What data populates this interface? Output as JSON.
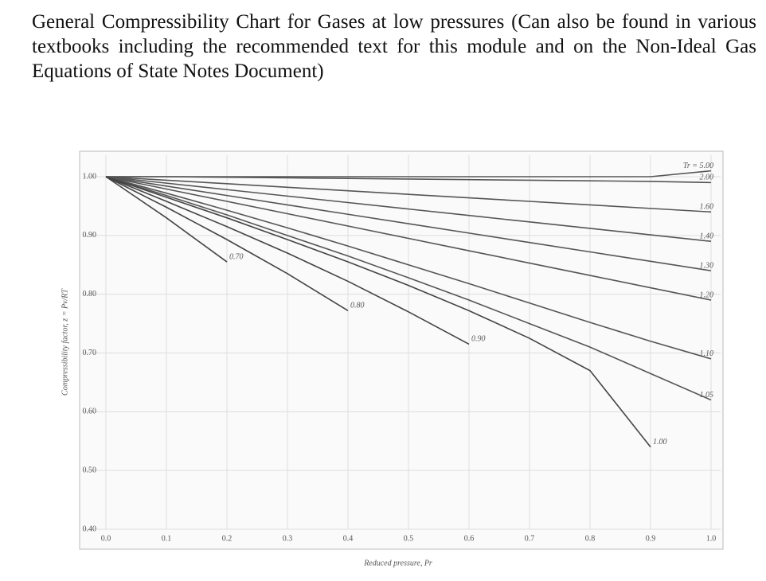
{
  "paragraph": "General Compressibility Chart for Gases at low pressures (Can also be found in various textbooks including the recommended text for this module and on the Non-Ideal Gas Equations of State Notes Document)",
  "chart_data": {
    "type": "line",
    "xlabel": "Reduced pressure, Pr",
    "ylabel": "Compressibility factor, z = Pv/RT",
    "x": [
      0,
      0.1,
      0.2,
      0.3,
      0.4,
      0.5,
      0.6,
      0.7,
      0.8,
      0.9,
      1.0
    ],
    "xlim": [
      0,
      1.0
    ],
    "xticks": [
      {
        "value": 0,
        "label": "0.0"
      },
      0.1,
      0.2,
      0.3,
      0.4,
      0.5,
      0.6,
      0.7,
      0.8,
      0.9,
      {
        "value": 1.0,
        "label": "1.0"
      }
    ],
    "ylim": [
      0.4,
      1.0
    ],
    "yticks": [
      {
        "value": 0.4,
        "label": "0.40"
      },
      {
        "value": 0.5,
        "label": "0.50"
      },
      {
        "value": 0.6,
        "label": "0.60"
      },
      {
        "value": 0.7,
        "label": "0.70"
      },
      {
        "value": 0.8,
        "label": "0.80"
      },
      {
        "value": 0.9,
        "label": "0.90"
      },
      {
        "value": 1.0,
        "label": "1.00"
      }
    ],
    "grid": true,
    "series": [
      {
        "name": "Tr = 5.00",
        "color": "#555555",
        "values": [
          1,
          1,
          1,
          1,
          1,
          1,
          1,
          1,
          1,
          1,
          1.01
        ]
      },
      {
        "name": "2.00",
        "color": "#555555",
        "values": [
          1,
          1,
          0.999,
          0.998,
          0.997,
          0.996,
          0.995,
          0.994,
          0.993,
          0.992,
          0.99
        ]
      },
      {
        "name": "1.60",
        "color": "#555555",
        "values": [
          1,
          0.994,
          0.988,
          0.982,
          0.976,
          0.97,
          0.964,
          0.958,
          0.952,
          0.946,
          0.94
        ]
      },
      {
        "name": "1.40",
        "color": "#555555",
        "values": [
          1,
          0.989,
          0.978,
          0.967,
          0.956,
          0.945,
          0.934,
          0.923,
          0.912,
          0.901,
          0.89
        ]
      },
      {
        "name": "1.30",
        "color": "#555555",
        "values": [
          1,
          0.984,
          0.968,
          0.952,
          0.936,
          0.92,
          0.904,
          0.888,
          0.872,
          0.856,
          0.84
        ]
      },
      {
        "name": "1.20",
        "color": "#555555",
        "values": [
          1,
          0.979,
          0.958,
          0.937,
          0.916,
          0.895,
          0.874,
          0.853,
          0.832,
          0.811,
          0.79
        ]
      },
      {
        "name": "1.10",
        "color": "#555555",
        "values": [
          1,
          0.972,
          0.943,
          0.913,
          0.882,
          0.85,
          0.818,
          0.785,
          0.752,
          0.72,
          0.69
        ]
      },
      {
        "name": "1.05",
        "color": "#555555",
        "values": [
          1,
          0.968,
          0.935,
          0.9,
          0.865,
          0.828,
          0.79,
          0.75,
          0.71,
          0.665,
          0.62
        ]
      },
      {
        "name": "1.00",
        "color": "#444444",
        "values": [
          1,
          0.965,
          0.93,
          0.893,
          0.855,
          0.815,
          0.772,
          0.725,
          0.67,
          0.54,
          null
        ]
      },
      {
        "name": "0.90",
        "color": "#444444",
        "values": [
          1,
          0.958,
          0.915,
          0.87,
          0.822,
          0.77,
          0.715,
          null,
          null,
          null,
          null
        ]
      },
      {
        "name": "0.80",
        "color": "#444444",
        "values": [
          1,
          0.948,
          0.893,
          0.835,
          0.772,
          null,
          null,
          null,
          null,
          null,
          null
        ]
      },
      {
        "name": "0.70",
        "color": "#444444",
        "values": [
          1,
          0.93,
          0.855,
          null,
          null,
          null,
          null,
          null,
          null,
          null,
          null
        ]
      }
    ]
  }
}
